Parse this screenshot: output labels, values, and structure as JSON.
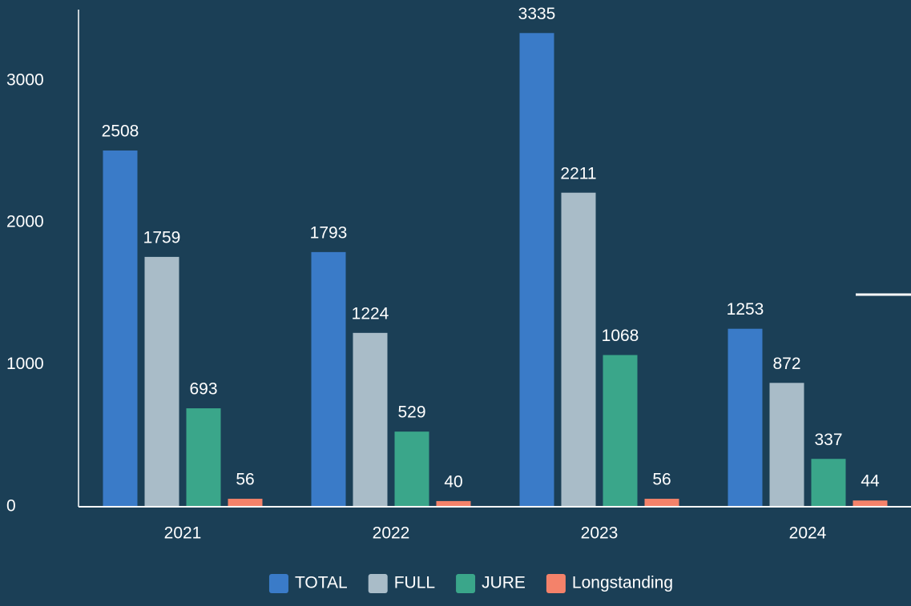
{
  "chart_data": {
    "type": "bar",
    "categories": [
      "2021",
      "2022",
      "2023",
      "2024"
    ],
    "series": [
      {
        "name": "TOTAL",
        "color": "#3a7bc8",
        "values": [
          2508,
          1793,
          3335,
          1253
        ]
      },
      {
        "name": "FULL",
        "color": "#a9bcc8",
        "values": [
          1759,
          1224,
          2211,
          872
        ]
      },
      {
        "name": "JURE",
        "color": "#3aa68a",
        "values": [
          693,
          529,
          1068,
          337
        ]
      },
      {
        "name": "Longstanding",
        "color": "#f4826a",
        "values": [
          56,
          40,
          56,
          44
        ]
      }
    ],
    "ylim": [
      0,
      3500
    ],
    "yticks": [
      0,
      1000,
      2000,
      3000
    ],
    "legend": "bottom"
  }
}
